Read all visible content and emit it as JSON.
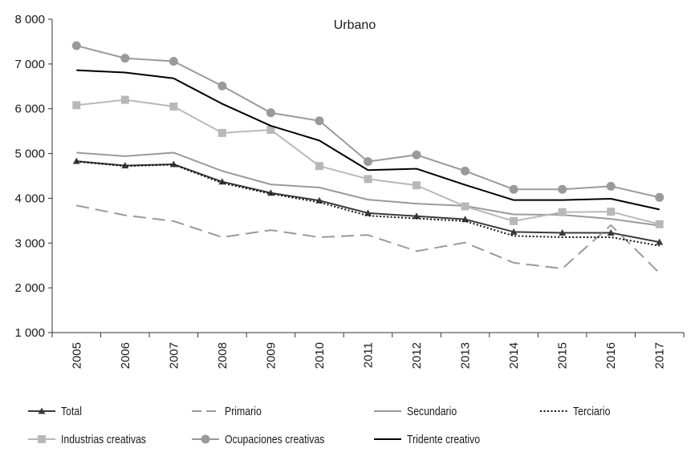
{
  "chart_data": {
    "type": "line",
    "title": "Urbano",
    "xlabel": "",
    "ylabel": "",
    "x": [
      "2005",
      "2006",
      "2007",
      "2008",
      "2009",
      "2010",
      "2011",
      "2012",
      "2013",
      "2014",
      "2015",
      "2016",
      "2017"
    ],
    "ylim": [
      1000,
      8000
    ],
    "yticks": [
      1000,
      2000,
      3000,
      4000,
      5000,
      6000,
      7000,
      8000
    ],
    "ytick_labels": [
      "1 000",
      "2 000",
      "3 000",
      "4 000",
      "5 000",
      "6 000",
      "7 000",
      "8 000"
    ],
    "grid": false,
    "legend_position": "bottom",
    "series": [
      {
        "name": "Total",
        "color": "#3a3a3a",
        "style": "solid",
        "marker": "triangle",
        "values": [
          4830,
          4730,
          4760,
          4370,
          4120,
          3950,
          3670,
          3600,
          3530,
          3250,
          3230,
          3230,
          3020
        ]
      },
      {
        "name": "Primario",
        "color": "#9a9a9a",
        "style": "dashed",
        "marker": "none",
        "values": [
          3840,
          3620,
          3490,
          3130,
          3290,
          3130,
          3180,
          2820,
          3010,
          2560,
          2430,
          3400,
          2330
        ]
      },
      {
        "name": "Secundario",
        "color": "#9a9a9a",
        "style": "solid",
        "marker": "none",
        "values": [
          5020,
          4940,
          5020,
          4610,
          4310,
          4240,
          3970,
          3880,
          3830,
          3640,
          3630,
          3540,
          3390
        ]
      },
      {
        "name": "Terciario",
        "color": "#111111",
        "style": "dotted",
        "marker": "none",
        "values": [
          4820,
          4720,
          4750,
          4340,
          4100,
          3910,
          3610,
          3550,
          3490,
          3160,
          3130,
          3130,
          2940
        ]
      },
      {
        "name": "Industrias creativas",
        "color": "#b8b8b8",
        "style": "solid",
        "marker": "square",
        "values": [
          6080,
          6200,
          6050,
          5460,
          5530,
          4720,
          4430,
          4290,
          3820,
          3490,
          3690,
          3700,
          3420
        ]
      },
      {
        "name": "Ocupaciones creativas",
        "color": "#9a9a9a",
        "style": "solid",
        "marker": "circle",
        "values": [
          7410,
          7130,
          7060,
          6510,
          5910,
          5730,
          4820,
          4970,
          4610,
          4200,
          4200,
          4270,
          4020
        ]
      },
      {
        "name": "Tridente creativo",
        "color": "#000000",
        "style": "solid",
        "marker": "none",
        "values": [
          6860,
          6810,
          6680,
          6110,
          5620,
          5290,
          4630,
          4660,
          4300,
          3960,
          3960,
          3990,
          3750
        ]
      }
    ]
  }
}
